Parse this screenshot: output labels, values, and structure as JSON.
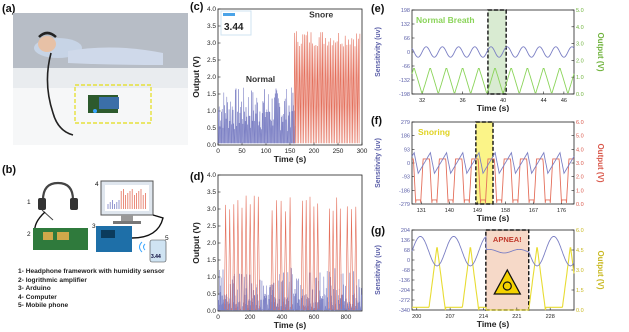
{
  "figure": {
    "labels": {
      "a": "(a)",
      "b": "(b)",
      "c": "(c)",
      "d": "(d)",
      "e": "(e)",
      "f": "(f)",
      "g": "(g)"
    },
    "component_list": [
      "1- Headphone framework with humidity sensor",
      "2- logrithmic amplifier",
      "3- Arduino",
      "4- Computer",
      "5- Mobile phone"
    ],
    "illustration_numbers": [
      "1",
      "2",
      "3",
      "4",
      "5"
    ],
    "illustration_phone_value": "3.44",
    "colors": {
      "blue": "#7b7fc4",
      "red": "#e46f5b",
      "green": "#8bd45a",
      "yellow": "#e8dc33",
      "dark_red": "#c0392b"
    }
  },
  "chart_data": [
    {
      "id": "c",
      "type": "line",
      "xlabel": "Time (s)",
      "ylabel": "Output (V)",
      "xlim": [
        0,
        300
      ],
      "ylim": [
        0,
        4.0
      ],
      "xticks": [
        "0",
        "50",
        "100",
        "150",
        "200",
        "250",
        "300"
      ],
      "yticks": [
        "0.0",
        "0.5",
        "1.0",
        "1.5",
        "2.0",
        "2.5",
        "3.0",
        "3.5",
        "4.0"
      ],
      "annotations": [
        "Normal",
        "Snore"
      ],
      "inset_value": "3.44",
      "series": [
        {
          "color": "#7b7fc4",
          "x_range": [
            0,
            160
          ],
          "peak_range": [
            0.4,
            1.7
          ]
        },
        {
          "color": "#e46f5b",
          "x_range": [
            158,
            295
          ],
          "peak_range": [
            2.9,
            3.4
          ]
        }
      ]
    },
    {
      "id": "d",
      "type": "line",
      "xlabel": "Time (s)",
      "ylabel": "Output (V)",
      "xlim": [
        0,
        900
      ],
      "ylim": [
        0,
        4.0
      ],
      "xticks": [
        "0",
        "200",
        "400",
        "600",
        "800"
      ],
      "yticks": [
        "0.0",
        "0.5",
        "1.0",
        "1.5",
        "2.0",
        "2.5",
        "3.0",
        "3.5",
        "4.0"
      ],
      "series": [
        {
          "color": "#e46f5b",
          "peak_range": [
            2.9,
            3.4
          ]
        },
        {
          "color": "#7b7fc4",
          "peak_range": [
            0.5,
            1.3
          ]
        }
      ]
    },
    {
      "id": "e",
      "type": "line",
      "xlabel": "Time (s)",
      "ylabel": "Sensitivity (uv)",
      "ylabel_right": "Output (V)",
      "xlim": [
        31,
        47
      ],
      "ylim": [
        -198,
        198
      ],
      "ylim_right": [
        0,
        5.0
      ],
      "xticks": [
        "32",
        "36",
        "40",
        "44",
        "46"
      ],
      "yticks": [
        "-198",
        "-132",
        "-66",
        "0",
        "66",
        "132",
        "198"
      ],
      "yticks_right": [
        "0.0",
        "1.0",
        "2.0",
        "3.0",
        "4.0",
        "5.0"
      ],
      "annotation": "Normal Breath",
      "highlight": [
        38.5,
        40.3
      ],
      "series": [
        {
          "color": "#7b7fc4",
          "kind": "sine",
          "amplitude": 25,
          "period": 1.6
        },
        {
          "color": "#8bd45a",
          "kind": "triangle",
          "peak": 1.6,
          "period": 1.6
        }
      ]
    },
    {
      "id": "f",
      "type": "line",
      "xlabel": "Time (s)",
      "ylabel": "Sensitivity (uv)",
      "ylabel_right": "Output (V)",
      "xlim": [
        128,
        180
      ],
      "ylim": [
        -279,
        279
      ],
      "ylim_right": [
        0,
        6.0
      ],
      "xticks": [
        "131",
        "140",
        "149",
        "158",
        "167",
        "176"
      ],
      "yticks": [
        "-279",
        "-186",
        "-93",
        "0",
        "93",
        "186",
        "279"
      ],
      "yticks_right": [
        "0.0",
        "1.0",
        "2.0",
        "3.0",
        "4.0",
        "5.0",
        "6.0"
      ],
      "annotation": "Snoring",
      "highlight": [
        148.5,
        154
      ],
      "series": [
        {
          "color": "#7b7fc4",
          "kind": "sawtooth",
          "amplitude": 70,
          "period": 5.2
        },
        {
          "color": "#e46f5b",
          "kind": "pulse",
          "peak": 3.3,
          "period": 5.2
        }
      ]
    },
    {
      "id": "g",
      "type": "line",
      "xlabel": "Time (s)",
      "ylabel": "Sensitivity (uv)",
      "ylabel_right": "Output (V)",
      "xlim": [
        199,
        233
      ],
      "ylim": [
        -340,
        204
      ],
      "ylim_right": [
        0,
        6.0
      ],
      "xticks": [
        "200",
        "207",
        "214",
        "221",
        "228"
      ],
      "yticks": [
        "-340",
        "-272",
        "-204",
        "-136",
        "-68",
        "0",
        "68",
        "136",
        "204"
      ],
      "yticks_right": [
        "0.0",
        "1.5",
        "3.0",
        "4.5",
        "6.0"
      ],
      "annotation": "APNEA!",
      "highlight": [
        214.5,
        223.5
      ],
      "series": [
        {
          "color": "#7b7fc4",
          "kind": "apnea_sine"
        },
        {
          "color": "#e8dc33",
          "kind": "apnea_pulse"
        }
      ]
    }
  ]
}
